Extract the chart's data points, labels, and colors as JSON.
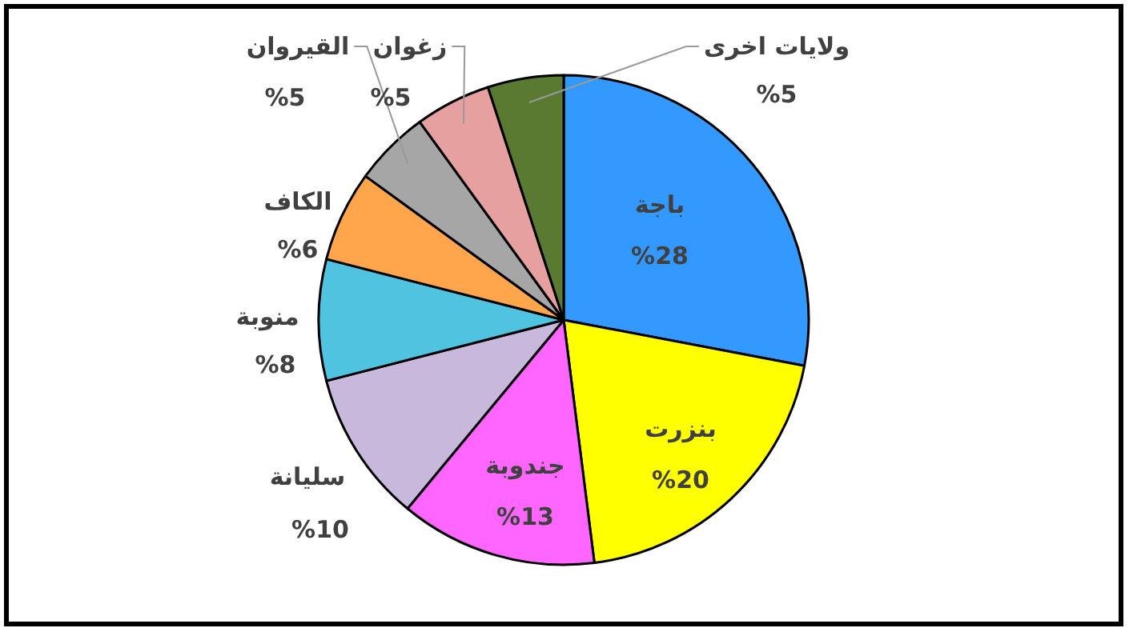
{
  "chart_data": {
    "type": "pie",
    "categories": [
      "باجة",
      "بنزرت",
      "جندوبة",
      "سليانة",
      "منوبة",
      "الكاف",
      "القيروان",
      "زغوان",
      "ولايات اخرى"
    ],
    "values": [
      28,
      20,
      13,
      10,
      8,
      6,
      5,
      5,
      5
    ],
    "colors": [
      "#3399ff",
      "#ffff00",
      "#ff66ff",
      "#c8b8dc",
      "#4fc3e0",
      "#ffa64d",
      "#a6a6a6",
      "#e6a0a0",
      "#5a7a32"
    ],
    "value_labels": [
      "%28",
      "%20",
      "%13",
      "%10",
      "%8",
      "%6",
      "%5",
      "%5",
      "%5"
    ]
  }
}
